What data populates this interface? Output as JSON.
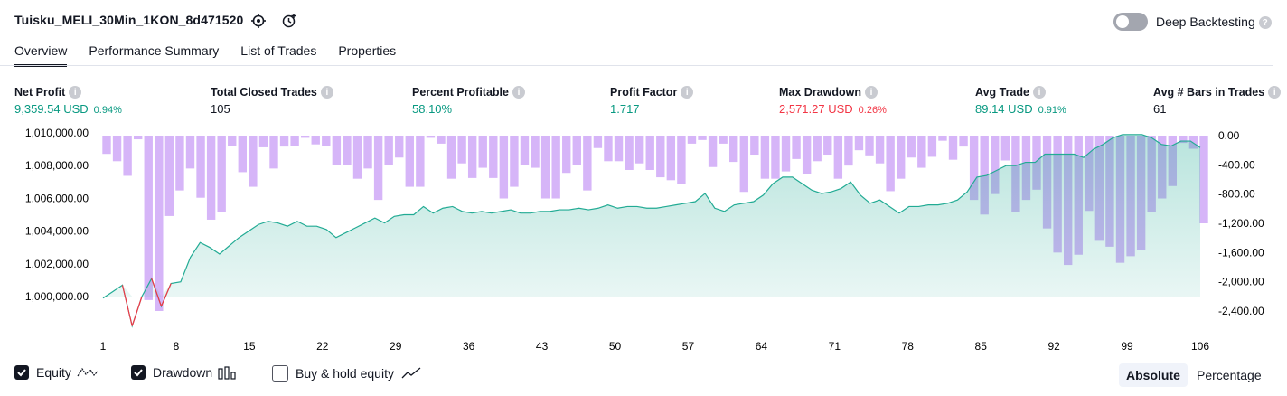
{
  "header": {
    "strategy_name": "Tuisku_MELI_30Min_1KON_8d471520",
    "deep_backtesting_label": "Deep Backtesting",
    "deep_backtesting_enabled": false
  },
  "tabs": [
    {
      "label": "Overview",
      "active": true
    },
    {
      "label": "Performance Summary",
      "active": false
    },
    {
      "label": "List of Trades",
      "active": false
    },
    {
      "label": "Properties",
      "active": false
    }
  ],
  "metrics": [
    {
      "label": "Net Profit",
      "value": "9,359.54 USD",
      "pct": "0.94%",
      "color": "#089981"
    },
    {
      "label": "Total Closed Trades",
      "value": "105",
      "pct": "",
      "color": "#131722"
    },
    {
      "label": "Percent Profitable",
      "value": "58.10%",
      "pct": "",
      "color": "#089981"
    },
    {
      "label": "Profit Factor",
      "value": "1.717",
      "pct": "",
      "color": "#089981"
    },
    {
      "label": "Max Drawdown",
      "value": "2,571.27 USD",
      "pct": "0.26%",
      "color": "#f23645"
    },
    {
      "label": "Avg Trade",
      "value": "89.14 USD",
      "pct": "0.91%",
      "color": "#089981"
    },
    {
      "label": "Avg # Bars in Trades",
      "value": "61",
      "pct": "",
      "color": "#131722"
    }
  ],
  "legend": {
    "equity_label": "Equity",
    "drawdown_label": "Drawdown",
    "buyhold_label": "Buy & hold equity",
    "equity_checked": true,
    "drawdown_checked": true,
    "buyhold_checked": false
  },
  "view_toggle": {
    "absolute_label": "Absolute",
    "percentage_label": "Percentage",
    "active": "Absolute"
  },
  "chart_data": {
    "type": "area",
    "left_axis_ticks": [
      "1,010,000.00",
      "1,008,000.00",
      "1,006,000.00",
      "1,004,000.00",
      "1,002,000.00",
      "1,000,000.00"
    ],
    "left_ylim": [
      999000,
      1010000
    ],
    "right_axis_ticks": [
      "0.00",
      "-400.00",
      "-800.00",
      "-1,200.00",
      "-1,600.00",
      "-2,000.00",
      "-2,400.00"
    ],
    "right_ylim": [
      -2400,
      0
    ],
    "x_ticks": [
      "1",
      "8",
      "15",
      "22",
      "29",
      "36",
      "43",
      "50",
      "57",
      "64",
      "71",
      "78",
      "85",
      "92",
      "99",
      "106"
    ],
    "x_range": [
      1,
      106
    ],
    "colors": {
      "equity_line": "#22ab94",
      "equity_negative": "#f23645",
      "drawdown_bar": "#cfa8f7",
      "grid": "#f0f3fa"
    },
    "equity": [
      999900,
      1000300,
      1000700,
      998200,
      1000000,
      1001100,
      999400,
      1000800,
      1000900,
      1002400,
      1003300,
      1003000,
      1002600,
      1003100,
      1003600,
      1004000,
      1004400,
      1004600,
      1004500,
      1004300,
      1004600,
      1004300,
      1004300,
      1004100,
      1003600,
      1003900,
      1004200,
      1004500,
      1004800,
      1004500,
      1004900,
      1005000,
      1005000,
      1005500,
      1005100,
      1005400,
      1005500,
      1005200,
      1005100,
      1005200,
      1005100,
      1005200,
      1005300,
      1005100,
      1005100,
      1005200,
      1005200,
      1005300,
      1005300,
      1005400,
      1005300,
      1005400,
      1005600,
      1005400,
      1005500,
      1005500,
      1005400,
      1005400,
      1005500,
      1005600,
      1005700,
      1005800,
      1006300,
      1005400,
      1005200,
      1005600,
      1005700,
      1005800,
      1006200,
      1006900,
      1007300,
      1007300,
      1006900,
      1006500,
      1006300,
      1006400,
      1006600,
      1007000,
      1006200,
      1005700,
      1005900,
      1005500,
      1005100,
      1005500,
      1005500,
      1005600,
      1005600,
      1005700,
      1005900,
      1006400,
      1007300,
      1007400,
      1007700,
      1008000,
      1008000,
      1008200,
      1008200,
      1008700,
      1008700,
      1008700,
      1008700,
      1008500,
      1009000,
      1009300,
      1009700,
      1009900,
      1009900,
      1009900,
      1009700,
      1009300,
      1009200,
      1009500,
      1009500,
      1009100
    ],
    "drawdown": [
      -250,
      -350,
      -550,
      -50,
      -2250,
      -2400,
      -1100,
      -750,
      -450,
      -850,
      -1150,
      -1050,
      -140,
      -500,
      -700,
      -160,
      -450,
      -150,
      -140,
      -30,
      -120,
      -140,
      -400,
      -400,
      -590,
      -450,
      -880,
      -400,
      -300,
      -700,
      -700,
      -30,
      -110,
      -590,
      -380,
      -580,
      -440,
      -580,
      -860,
      -700,
      -400,
      -440,
      -860,
      -860,
      -510,
      -400,
      -750,
      -170,
      -350,
      -350,
      -470,
      -380,
      -470,
      -570,
      -610,
      -660,
      -110,
      -60,
      -430,
      -110,
      -360,
      -770,
      -260,
      -590,
      -590,
      -490,
      -320,
      -520,
      -350,
      -260,
      -590,
      -410,
      -200,
      -270,
      -380,
      -760,
      -590,
      -300,
      -440,
      -290,
      -70,
      -330,
      -150,
      -880,
      -1080,
      -800,
      -340,
      -1050,
      -880,
      -740,
      -1270,
      -1600,
      -1770,
      -1630,
      -1030,
      -1440,
      -1520,
      -1740,
      -1650,
      -1560,
      -1040,
      -860,
      -690,
      -100,
      -180,
      -1200
    ],
    "drawdown_overlay_bars": [
      -110,
      -90,
      -830,
      -890,
      -640,
      -510,
      -1220,
      -1200,
      -110,
      -40,
      -190,
      -1960,
      -290,
      -20,
      -100,
      -500,
      -680,
      -810,
      -310,
      -620,
      -300,
      -380,
      -490,
      -530,
      -250,
      -150,
      -660
    ]
  }
}
